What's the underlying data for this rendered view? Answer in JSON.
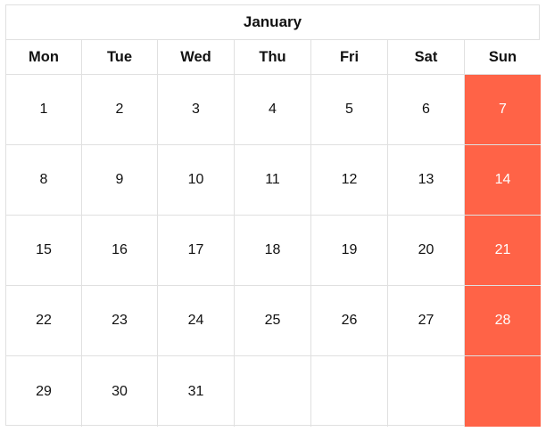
{
  "calendar": {
    "month": "January",
    "weekdays": [
      "Mon",
      "Tue",
      "Wed",
      "Thu",
      "Fri",
      "Sat",
      "Sun"
    ],
    "weeks": [
      [
        "1",
        "2",
        "3",
        "4",
        "5",
        "6",
        "7"
      ],
      [
        "8",
        "9",
        "10",
        "11",
        "12",
        "13",
        "14"
      ],
      [
        "15",
        "16",
        "17",
        "18",
        "19",
        "20",
        "21"
      ],
      [
        "22",
        "23",
        "24",
        "25",
        "26",
        "27",
        "28"
      ],
      [
        "29",
        "30",
        "31",
        "",
        "",
        "",
        ""
      ]
    ],
    "colors": {
      "sunday_highlight": "#ff6347",
      "grid_line": "#e0e0e0"
    }
  }
}
